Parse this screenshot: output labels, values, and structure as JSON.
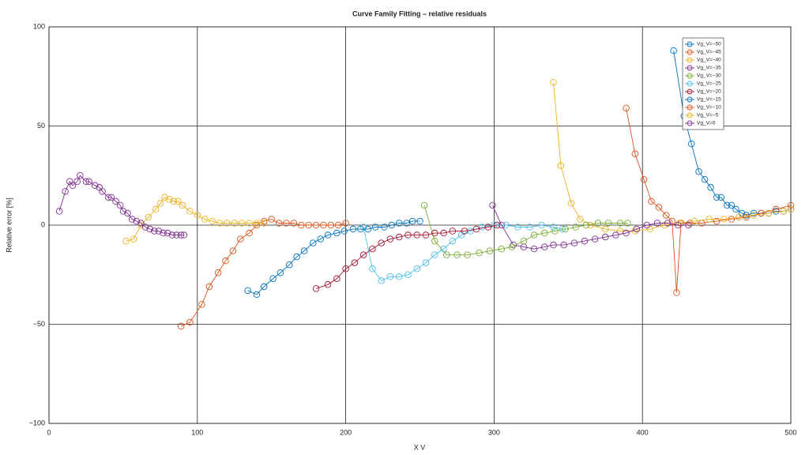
{
  "chart_data": {
    "type": "line",
    "title": "Curve Family Fitting – relative residuals",
    "x_label": "X V",
    "y_label": "Relative error [%]",
    "xlim": [
      0,
      500
    ],
    "xticks": [
      0,
      100,
      200,
      300,
      400,
      500
    ],
    "ylim": [
      -100,
      100
    ],
    "yticks": [
      {
        "value": -100,
        "label": "−100"
      },
      {
        "value": -50,
        "label": "−50"
      },
      0,
      50,
      100
    ],
    "grid": true,
    "legend": "upper right",
    "series": [
      {
        "name": "Vg_V=−50",
        "color": "#0072BD",
        "x": [
          421,
          428,
          433,
          438,
          442,
          446,
          450,
          453,
          457,
          460,
          463,
          467,
          470,
          475,
          480,
          485,
          490,
          495,
          500
        ],
        "values": [
          88,
          55,
          41,
          27,
          23,
          19,
          14,
          14,
          10,
          10,
          8,
          6,
          5,
          6,
          6,
          6,
          7,
          7,
          8
        ]
      },
      {
        "name": "Vg_V=−45",
        "color": "#D95319",
        "x": [
          389,
          395,
          401,
          406,
          411,
          416,
          420,
          423,
          426,
          432,
          440,
          450,
          460,
          470,
          480,
          490,
          500
        ],
        "values": [
          59,
          36,
          23,
          12,
          9,
          5,
          2,
          -34,
          1,
          1,
          1,
          2,
          3,
          4,
          6,
          8,
          10
        ]
      },
      {
        "name": "Vg_V=−40",
        "color": "#EDB120",
        "x": [
          340,
          345,
          352,
          358,
          365,
          375,
          385,
          395,
          405,
          415,
          425,
          435,
          445,
          455,
          465,
          475,
          485,
          495,
          500
        ],
        "values": [
          72,
          30,
          11,
          3,
          0,
          -2,
          -3,
          -3,
          -2,
          0,
          1,
          2,
          3,
          3,
          4,
          5,
          6,
          7,
          8
        ]
      },
      {
        "name": "Vg_V=−35",
        "color": "#7E2F8E",
        "x": [
          299,
          305,
          313,
          320,
          327,
          334,
          340,
          347,
          354,
          361,
          368,
          375,
          382,
          389,
          396,
          403,
          410,
          417,
          424,
          431
        ],
        "values": [
          10,
          0,
          -10,
          -11,
          -12,
          -11,
          -10,
          -10,
          -9,
          -8,
          -7,
          -6,
          -5,
          -4,
          -2,
          0,
          1,
          1,
          0,
          0
        ]
      },
      {
        "name": "Vg_V=−30",
        "color": "#77AC30",
        "x": [
          253,
          260,
          268,
          275,
          282,
          290,
          297,
          305,
          312,
          320,
          327,
          334,
          341,
          348,
          355,
          362,
          370,
          377,
          385,
          390
        ],
        "values": [
          10,
          -8,
          -15,
          -15,
          -15,
          -14,
          -13,
          -12,
          -11,
          -8,
          -5,
          -4,
          -3,
          -2,
          -1,
          0,
          1,
          1,
          1,
          1
        ]
      },
      {
        "name": "Vg_V=−25",
        "color": "#4DBEEE",
        "x": [
          212,
          218,
          224,
          230,
          236,
          242,
          248,
          254,
          260,
          266,
          272,
          278,
          284,
          292,
          300,
          308,
          316,
          324,
          332,
          340,
          346
        ],
        "values": [
          -1,
          -22,
          -28,
          -26,
          -26,
          -25,
          -22,
          -19,
          -15,
          -12,
          -8,
          -5,
          -3,
          -1,
          0,
          0,
          -1,
          -1,
          0,
          -1,
          -2
        ]
      },
      {
        "name": "Vg_V=−20",
        "color": "#A2142F",
        "x": [
          180,
          188,
          194,
          200,
          206,
          212,
          218,
          224,
          230,
          236,
          242,
          248,
          254,
          260,
          266,
          272,
          280,
          288,
          296,
          302
        ],
        "values": [
          -32,
          -30,
          -27,
          -22,
          -19,
          -15,
          -12,
          -9,
          -7,
          -6,
          -5,
          -5,
          -5,
          -4,
          -4,
          -3,
          -3,
          -2,
          -1,
          0
        ]
      },
      {
        "name": "Vg_V=−15",
        "color": "#0072BD",
        "x": [
          134,
          140,
          145,
          151,
          156,
          162,
          167,
          172,
          178,
          183,
          188,
          194,
          199,
          205,
          210,
          215,
          220,
          226,
          231,
          236,
          241,
          245,
          250
        ],
        "values": [
          -33,
          -35,
          -31,
          -27,
          -24,
          -20,
          -16,
          -13,
          -9,
          -7,
          -5,
          -4,
          -3,
          -2,
          -2,
          -2,
          -1,
          -1,
          0,
          1,
          1,
          2,
          2
        ]
      },
      {
        "name": "Vg_V=−10",
        "color": "#D95319",
        "x": [
          89,
          95,
          103,
          108,
          114,
          119,
          124,
          129,
          135,
          140,
          145,
          150,
          155,
          160,
          165,
          170,
          175,
          180,
          185,
          190,
          195,
          200
        ],
        "values": [
          -51,
          -49,
          -40,
          -31,
          -24,
          -18,
          -13,
          -7,
          -4,
          0,
          2,
          3,
          1,
          1,
          1,
          0,
          0,
          0,
          0,
          0,
          0,
          1
        ]
      },
      {
        "name": "Vg_V=−5",
        "color": "#EDB120",
        "x": [
          52,
          57,
          62,
          67,
          72,
          75,
          78,
          81,
          84,
          87,
          90,
          95,
          100,
          105,
          110,
          115,
          120,
          125,
          130,
          135,
          140,
          145
        ],
        "values": [
          -8,
          -7,
          0,
          4,
          8,
          11,
          14,
          13,
          12,
          12,
          10,
          7,
          5,
          3,
          2,
          1,
          1,
          1,
          1,
          1,
          1,
          1
        ]
      },
      {
        "name": "Vg_V=0",
        "color": "#7E2F8E",
        "x": [
          7,
          11,
          14,
          16,
          19,
          21,
          25,
          27,
          31,
          34,
          36,
          40,
          42,
          45,
          48,
          50,
          53,
          56,
          59,
          62,
          65,
          68,
          71,
          74,
          77,
          80,
          83,
          86,
          89,
          91
        ],
        "values": [
          7,
          17,
          22,
          20,
          22,
          25,
          22,
          22,
          20,
          19,
          17,
          14,
          14,
          12,
          10,
          7,
          6,
          3,
          2,
          1,
          -1,
          -2,
          -3,
          -3,
          -4,
          -4,
          -5,
          -5,
          -5,
          -5
        ]
      }
    ]
  }
}
